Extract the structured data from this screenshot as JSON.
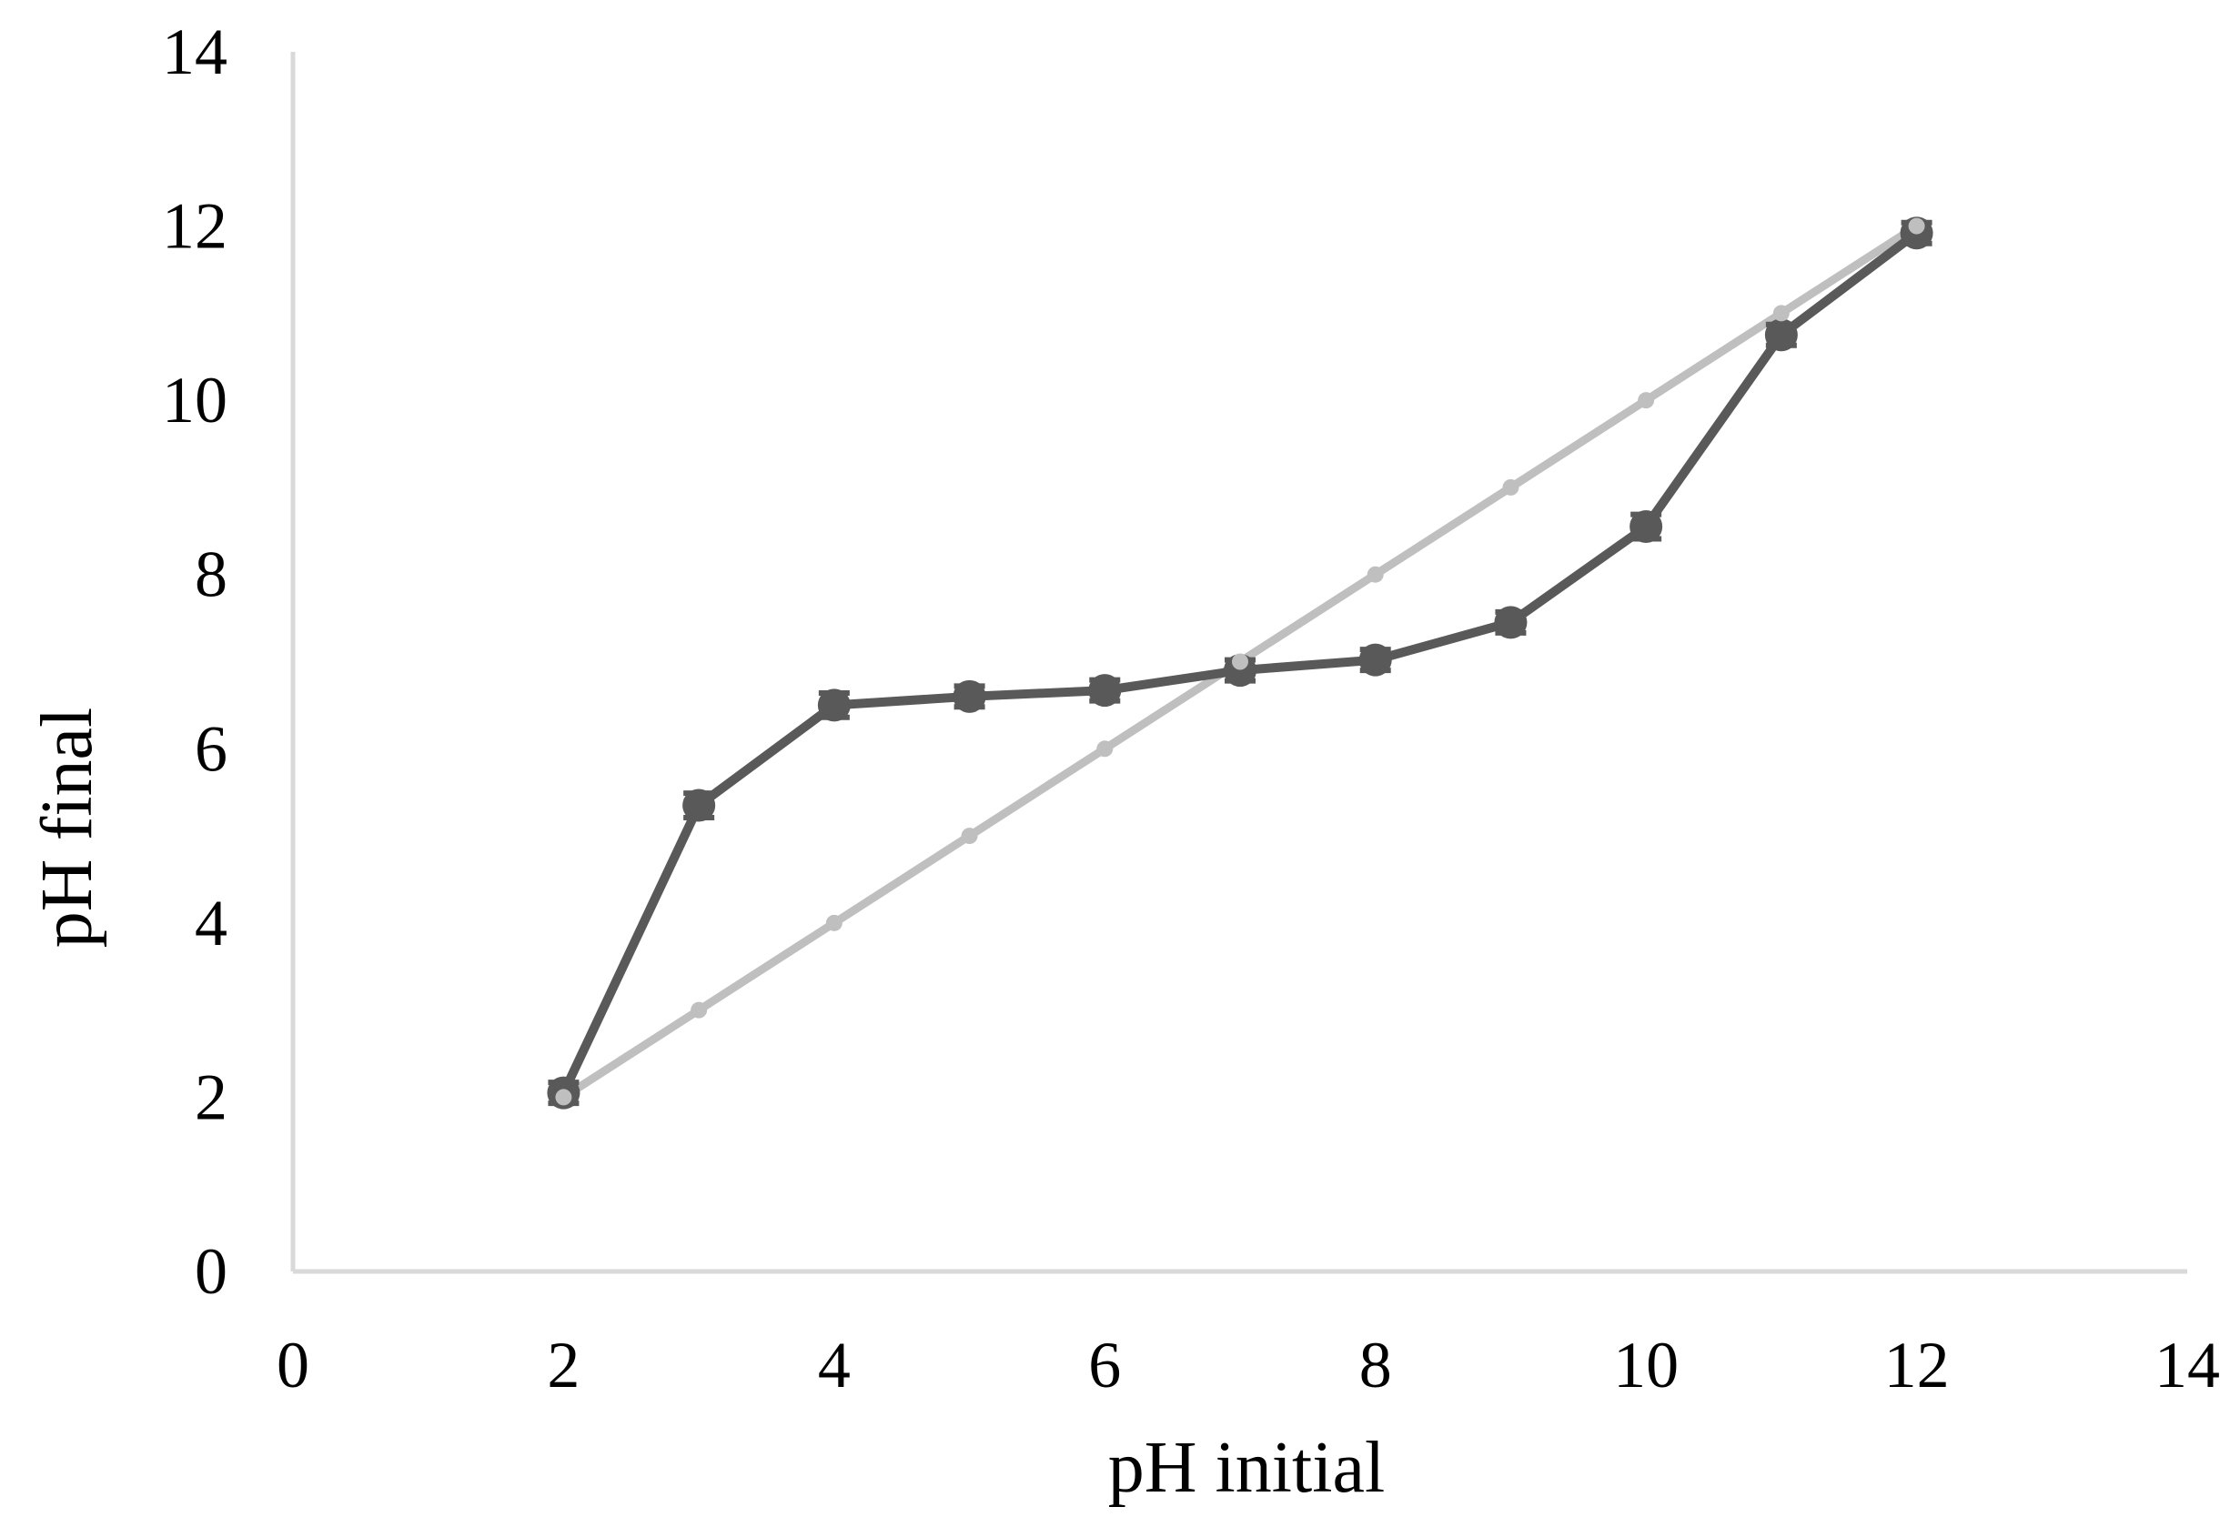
{
  "colors": {
    "measured": "#595959",
    "reference": "#bfbfbf",
    "axis": "#d9d9d9",
    "text": "#000000"
  },
  "chart_data": {
    "type": "line",
    "title": "",
    "xlabel": "pH initial",
    "ylabel": "pH final",
    "xlim": [
      0,
      14
    ],
    "ylim": [
      0,
      14
    ],
    "xticks": [
      0,
      2,
      4,
      6,
      8,
      10,
      12,
      14
    ],
    "yticks": [
      0,
      2,
      4,
      6,
      8,
      10,
      12,
      14
    ],
    "grid": false,
    "legend": "none",
    "series": [
      {
        "style": "dark-circles-with-error-bars",
        "color": "#595959",
        "x": [
          2,
          3,
          4,
          5,
          6,
          7,
          8,
          9,
          10,
          11,
          12
        ],
        "y": [
          2.05,
          5.35,
          6.5,
          6.6,
          6.67,
          6.9,
          7.02,
          7.45,
          8.55,
          10.75,
          11.92
        ],
        "error": [
          0.12,
          0.14,
          0.14,
          0.12,
          0.12,
          0.12,
          0.12,
          0.12,
          0.14,
          0.12,
          0.12
        ]
      },
      {
        "style": "light-reference-line",
        "color": "#bfbfbf",
        "x": [
          2,
          3,
          4,
          5,
          6,
          7,
          8,
          9,
          10,
          11,
          12
        ],
        "y": [
          2,
          3,
          4,
          5,
          6,
          7,
          8,
          9,
          10,
          11,
          12
        ]
      }
    ]
  }
}
